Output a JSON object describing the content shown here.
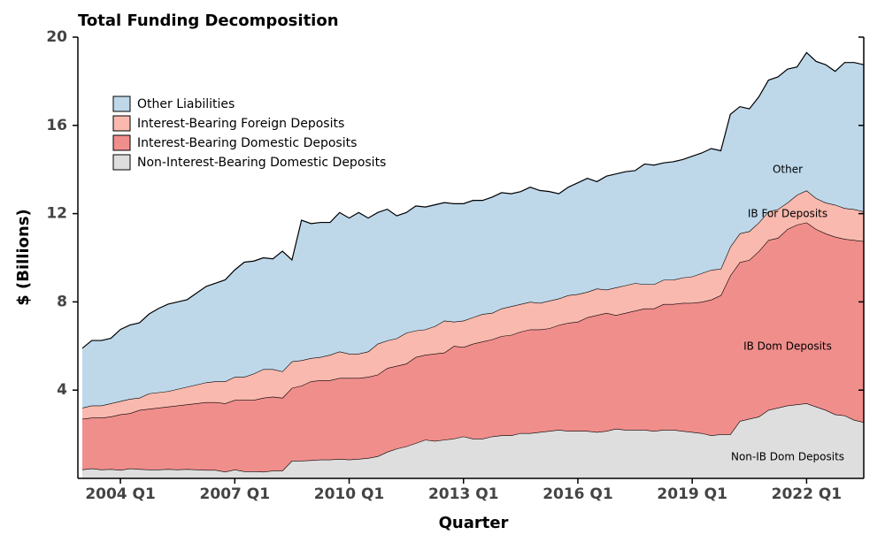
{
  "chart_data": {
    "type": "stacked_area",
    "title": "Total Funding Decomposition",
    "x_label": "Quarter",
    "y_label": "$ (Billions)",
    "categories": [
      null,
      null,
      null,
      null,
      "2004 Q1",
      null,
      null,
      null,
      null,
      null,
      null,
      null,
      null,
      null,
      null,
      null,
      "2007 Q1",
      null,
      null,
      null,
      null,
      null,
      null,
      null,
      null,
      null,
      null,
      null,
      "2010 Q1",
      null,
      null,
      null,
      null,
      null,
      null,
      null,
      null,
      null,
      null,
      null,
      "2013 Q1",
      null,
      null,
      null,
      null,
      null,
      null,
      null,
      null,
      null,
      null,
      null,
      "2016 Q1",
      null,
      null,
      null,
      null,
      null,
      null,
      null,
      null,
      null,
      null,
      null,
      "2019 Q1",
      null,
      null,
      null,
      null,
      null,
      null,
      null,
      null,
      null,
      null,
      null,
      "2022 Q1",
      null,
      null,
      null,
      null,
      null,
      null
    ],
    "series": [
      {
        "name": "Non-Interest-Bearing Domestic Deposits",
        "label": "Non-IB Dom Deposits",
        "color": "#dedede",
        "values": [
          0.4,
          0.45,
          0.4,
          0.42,
          0.38,
          0.45,
          0.42,
          0.4,
          0.4,
          0.42,
          0.4,
          0.42,
          0.4,
          0.38,
          0.38,
          0.3,
          0.4,
          0.32,
          0.32,
          0.3,
          0.35,
          0.35,
          0.8,
          0.8,
          0.82,
          0.85,
          0.85,
          0.88,
          0.85,
          0.88,
          0.92,
          1.0,
          1.2,
          1.35,
          1.45,
          1.6,
          1.75,
          1.7,
          1.75,
          1.8,
          1.9,
          1.8,
          1.8,
          1.9,
          1.95,
          1.95,
          2.05,
          2.05,
          2.1,
          2.15,
          2.2,
          2.15,
          2.15,
          2.15,
          2.1,
          2.15,
          2.25,
          2.2,
          2.2,
          2.2,
          2.15,
          2.2,
          2.2,
          2.15,
          2.1,
          2.05,
          1.95,
          2.0,
          2.0,
          2.6,
          2.7,
          2.8,
          3.1,
          3.2,
          3.3,
          3.35,
          3.4,
          3.25,
          3.1,
          2.9,
          2.85,
          2.65,
          2.55
        ]
      },
      {
        "name": "Interest-Bearing Domestic Deposits",
        "label": "IB Dom Deposits",
        "color": "#f08e8c",
        "values": [
          2.3,
          2.3,
          2.35,
          2.38,
          2.52,
          2.5,
          2.68,
          2.75,
          2.8,
          2.83,
          2.9,
          2.93,
          3.0,
          3.07,
          3.07,
          3.1,
          3.15,
          3.23,
          3.23,
          3.35,
          3.35,
          3.3,
          3.3,
          3.4,
          3.58,
          3.6,
          3.6,
          3.67,
          3.7,
          3.67,
          3.68,
          3.7,
          3.8,
          3.75,
          3.75,
          3.9,
          3.85,
          3.95,
          3.95,
          4.2,
          4.05,
          4.3,
          4.4,
          4.4,
          4.5,
          4.55,
          4.6,
          4.7,
          4.65,
          4.65,
          4.75,
          4.9,
          4.95,
          5.15,
          5.3,
          5.35,
          5.15,
          5.3,
          5.4,
          5.5,
          5.55,
          5.7,
          5.7,
          5.8,
          5.85,
          5.95,
          6.15,
          6.3,
          7.2,
          7.2,
          7.2,
          7.5,
          7.7,
          7.7,
          8.0,
          8.15,
          8.2,
          8.05,
          8.0,
          8.05,
          8.0,
          8.15,
          8.2
        ]
      },
      {
        "name": "Interest-Bearing Foreign Deposits",
        "label": "IB For Deposits",
        "color": "#f9b9ae",
        "values": [
          0.5,
          0.55,
          0.55,
          0.6,
          0.6,
          0.65,
          0.55,
          0.7,
          0.7,
          0.7,
          0.75,
          0.8,
          0.85,
          0.9,
          0.95,
          1.0,
          1.05,
          1.05,
          1.2,
          1.3,
          1.25,
          1.2,
          1.2,
          1.15,
          1.05,
          1.05,
          1.15,
          1.2,
          1.1,
          1.1,
          1.15,
          1.4,
          1.25,
          1.25,
          1.4,
          1.2,
          1.15,
          1.25,
          1.45,
          1.1,
          1.2,
          1.2,
          1.25,
          1.2,
          1.25,
          1.3,
          1.25,
          1.25,
          1.2,
          1.25,
          1.2,
          1.25,
          1.25,
          1.15,
          1.2,
          1.05,
          1.25,
          1.25,
          1.25,
          1.1,
          1.1,
          1.1,
          1.1,
          1.15,
          1.2,
          1.3,
          1.35,
          1.2,
          1.3,
          1.3,
          1.3,
          1.3,
          1.3,
          1.3,
          1.2,
          1.35,
          1.45,
          1.4,
          1.4,
          1.45,
          1.4,
          1.4,
          1.35
        ]
      },
      {
        "name": "Other Liabilities",
        "label": "Other",
        "color": "#bed8ea",
        "values": [
          2.7,
          2.95,
          2.95,
          2.95,
          3.25,
          3.35,
          3.4,
          3.6,
          3.8,
          3.95,
          3.95,
          3.95,
          4.15,
          4.35,
          4.45,
          4.6,
          4.85,
          5.2,
          5.1,
          5.05,
          5.0,
          5.45,
          4.6,
          6.35,
          6.1,
          6.1,
          6.0,
          6.3,
          6.15,
          6.4,
          6.05,
          5.95,
          5.95,
          5.55,
          5.45,
          5.65,
          5.55,
          5.5,
          5.35,
          5.35,
          5.3,
          5.3,
          5.15,
          5.25,
          5.25,
          5.1,
          5.1,
          5.2,
          5.1,
          4.95,
          4.75,
          4.9,
          5.05,
          5.15,
          4.85,
          5.15,
          5.15,
          5.15,
          5.1,
          5.45,
          5.4,
          5.3,
          5.35,
          5.35,
          5.45,
          5.45,
          5.5,
          5.35,
          6.0,
          5.75,
          5.55,
          5.7,
          5.95,
          6.0,
          6.05,
          5.8,
          6.25,
          6.2,
          6.25,
          6.05,
          6.6,
          6.65,
          6.65
        ]
      }
    ],
    "ylim": [
      0,
      20
    ],
    "yticks": [
      4,
      8,
      12,
      16,
      20
    ],
    "legend": "upper left"
  }
}
